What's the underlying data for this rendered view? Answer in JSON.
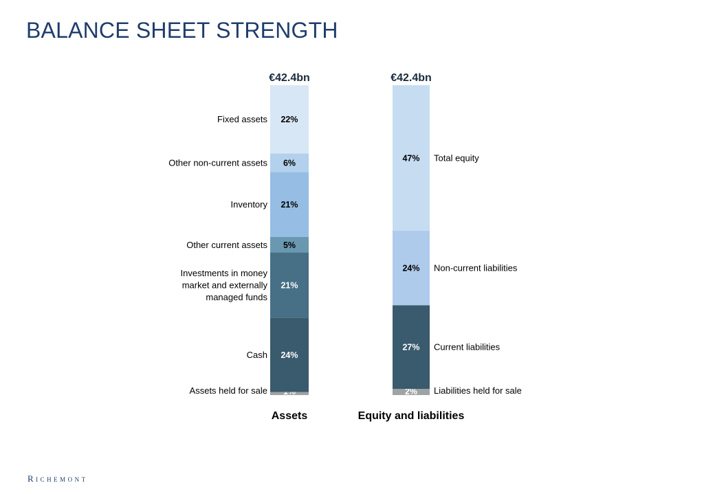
{
  "title": "BALANCE SHEET STRENGTH",
  "logo_text": "Richemont",
  "chart_data": {
    "type": "bar",
    "stacked": true,
    "percent_stacked": true,
    "categories": [
      "Assets",
      "Equity and liabilities"
    ],
    "totals": [
      "€42.4bn",
      "€42.4bn"
    ],
    "stacks": [
      {
        "category": "Assets",
        "label_side": "left",
        "segments": [
          {
            "name": "Assets held for sale",
            "value": 1,
            "label": "1%",
            "color": "#9ea3a4",
            "text_color": "#ffffff"
          },
          {
            "name": "Cash",
            "value": 24,
            "label": "24%",
            "color": "#3a5a6d",
            "text_color": "#ffffff"
          },
          {
            "name": "Investments in money market and externally managed funds",
            "lines": [
              "Investments in money",
              "market and externally",
              "managed funds"
            ],
            "value": 21,
            "label": "21%",
            "color": "#476f86",
            "text_color": "#ffffff"
          },
          {
            "name": "Other current assets",
            "value": 5,
            "label": "5%",
            "color": "#6a98b0",
            "text_color": "#000000"
          },
          {
            "name": "Inventory",
            "value": 21,
            "label": "21%",
            "color": "#96bde3",
            "text_color": "#000000"
          },
          {
            "name": "Other non-current assets",
            "value": 6,
            "label": "6%",
            "color": "#b3d0ec",
            "text_color": "#000000"
          },
          {
            "name": "Fixed assets",
            "value": 22,
            "label": "22%",
            "color": "#d8e7f6",
            "text_color": "#000000"
          }
        ]
      },
      {
        "category": "Equity and liabilities",
        "label_side": "right",
        "segments": [
          {
            "name": "Liabilities held for sale",
            "value": 2,
            "label": "2%",
            "color": "#9ea3a4",
            "text_color": "#ffffff"
          },
          {
            "name": "Current liabilities",
            "value": 27,
            "label": "27%",
            "color": "#3a5a6d",
            "text_color": "#ffffff"
          },
          {
            "name": "Non-current liabilities",
            "value": 24,
            "label": "24%",
            "color": "#aecbeb",
            "text_color": "#000000"
          },
          {
            "name": "Total equity",
            "value": 47,
            "label": "47%",
            "color": "#c6dcf1",
            "text_color": "#000000"
          }
        ]
      }
    ],
    "ylim": [
      0,
      100
    ],
    "grid": false,
    "legend": "none"
  }
}
